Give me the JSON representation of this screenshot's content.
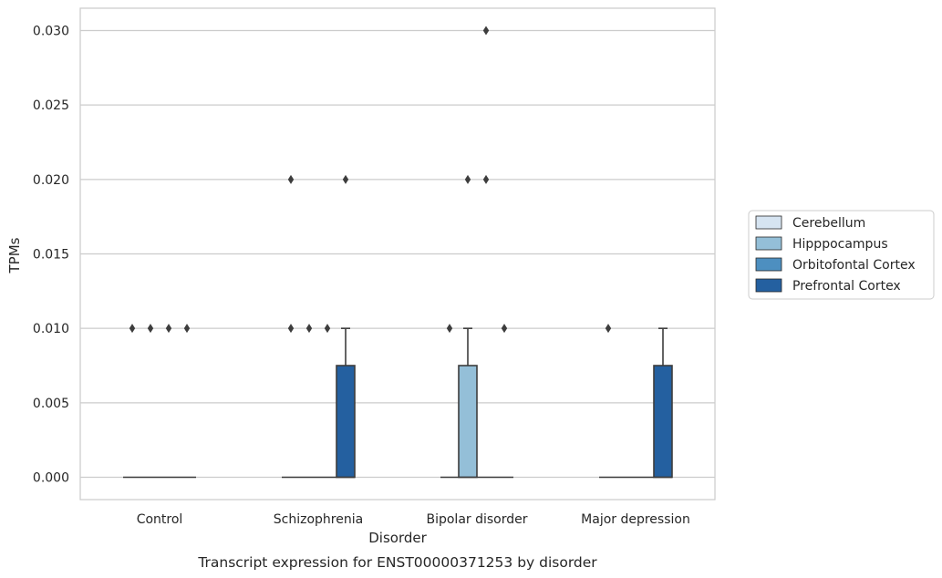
{
  "chart_data": {
    "type": "box",
    "title": "",
    "caption": "Transcript expression for ENST00000371253 by disorder",
    "xlabel": "Disorder",
    "ylabel": "TPMs",
    "ylim": [
      -0.0015,
      0.0315
    ],
    "yticks": [
      "0.000",
      "0.005",
      "0.010",
      "0.015",
      "0.020",
      "0.025",
      "0.030"
    ],
    "ytick_values": [
      0,
      0.005,
      0.01,
      0.015,
      0.02,
      0.025,
      0.03
    ],
    "grid": true,
    "legend_position": "right",
    "categories": [
      "Control",
      "Schizophrenia",
      "Bipolar disorder",
      "Major depression"
    ],
    "series": [
      {
        "name": "Cerebellum",
        "color": "#d6e4f1",
        "boxes": [
          {
            "q1": 0,
            "median": 0,
            "q3": 0,
            "whisker_low": 0,
            "whisker_high": 0,
            "outliers": [
              0.01
            ]
          },
          {
            "q1": 0,
            "median": 0,
            "q3": 0,
            "whisker_low": 0,
            "whisker_high": 0,
            "outliers": [
              0.01,
              0.02
            ]
          },
          {
            "q1": 0,
            "median": 0,
            "q3": 0,
            "whisker_low": 0,
            "whisker_high": 0,
            "outliers": [
              0.01
            ]
          },
          {
            "q1": 0,
            "median": 0,
            "q3": 0,
            "whisker_low": 0,
            "whisker_high": 0,
            "outliers": [
              0.01
            ]
          }
        ]
      },
      {
        "name": "Hipppocampus",
        "color": "#94bfd8",
        "boxes": [
          {
            "q1": 0,
            "median": 0,
            "q3": 0,
            "whisker_low": 0,
            "whisker_high": 0,
            "outliers": [
              0.01
            ]
          },
          {
            "q1": 0,
            "median": 0,
            "q3": 0,
            "whisker_low": 0,
            "whisker_high": 0,
            "outliers": [
              0.01
            ]
          },
          {
            "q1": 0,
            "median": 0,
            "q3": 0.0075,
            "whisker_low": 0,
            "whisker_high": 0.01,
            "outliers": [
              0.02
            ]
          },
          {
            "q1": 0,
            "median": 0,
            "q3": 0,
            "whisker_low": 0,
            "whisker_high": 0,
            "outliers": []
          }
        ]
      },
      {
        "name": "Orbitofontal Cortex",
        "color": "#4d8fc0",
        "boxes": [
          {
            "q1": 0,
            "median": 0,
            "q3": 0,
            "whisker_low": 0,
            "whisker_high": 0,
            "outliers": [
              0.01
            ]
          },
          {
            "q1": 0,
            "median": 0,
            "q3": 0,
            "whisker_low": 0,
            "whisker_high": 0,
            "outliers": [
              0.01
            ]
          },
          {
            "q1": 0,
            "median": 0,
            "q3": 0,
            "whisker_low": 0,
            "whisker_high": 0,
            "outliers": [
              0.03,
              0.02
            ]
          },
          {
            "q1": 0,
            "median": 0,
            "q3": 0,
            "whisker_low": 0,
            "whisker_high": 0,
            "outliers": []
          }
        ]
      },
      {
        "name": "Prefrontal Cortex",
        "color": "#2460a0",
        "boxes": [
          {
            "q1": 0,
            "median": 0,
            "q3": 0,
            "whisker_low": 0,
            "whisker_high": 0,
            "outliers": [
              0.01
            ]
          },
          {
            "q1": 0,
            "median": 0,
            "q3": 0.0075,
            "whisker_low": 0,
            "whisker_high": 0.01,
            "outliers": [
              0.02
            ]
          },
          {
            "q1": 0,
            "median": 0,
            "q3": 0,
            "whisker_low": 0,
            "whisker_high": 0,
            "outliers": [
              0.01
            ]
          },
          {
            "q1": 0,
            "median": 0,
            "q3": 0.0075,
            "whisker_low": 0,
            "whisker_high": 0.01,
            "outliers": []
          }
        ]
      }
    ]
  }
}
